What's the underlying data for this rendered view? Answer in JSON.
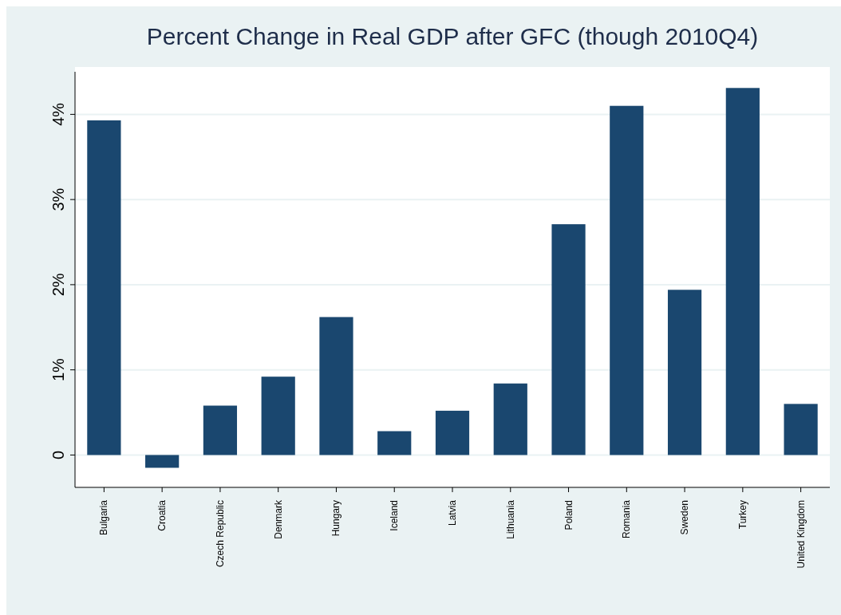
{
  "chart_data": {
    "type": "bar",
    "title": "Percent Change in Real GDP after GFC (though 2010Q4)",
    "categories": [
      "Bulgaria",
      "Croatia",
      "Czech Republic",
      "Denmark",
      "Hungary",
      "Iceland",
      "Latvia",
      "Lithuania",
      "Poland",
      "Romania",
      "Sweden",
      "Turkey",
      "United Kingdom"
    ],
    "values": [
      3.93,
      -0.15,
      0.58,
      0.92,
      1.62,
      0.28,
      0.52,
      0.84,
      2.71,
      4.1,
      1.94,
      4.31,
      0.6
    ],
    "color": "#1a476f",
    "ylim": [
      -0.38,
      4.5
    ],
    "yticks": [
      {
        "value": 0,
        "label": "0"
      },
      {
        "value": 1,
        "label": "1%"
      },
      {
        "value": 2,
        "label": "2%"
      },
      {
        "value": 3,
        "label": "3%"
      },
      {
        "value": 4,
        "label": "4%"
      }
    ],
    "grid": "y"
  }
}
